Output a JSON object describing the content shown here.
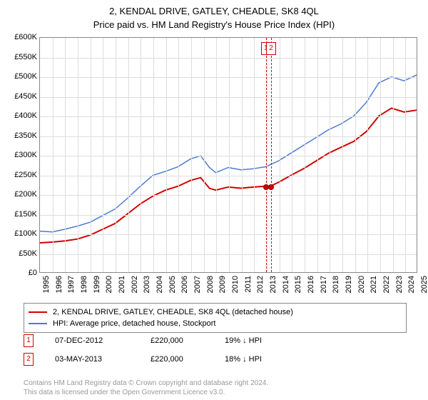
{
  "title": "2, KENDAL DRIVE, GATLEY, CHEADLE, SK8 4QL",
  "subtitle": "Price paid vs. HM Land Registry's House Price Index (HPI)",
  "chart": {
    "type": "line",
    "background_color": "#ffffff",
    "grid_color": "#dddddd",
    "border_color": "#888888",
    "x_start_year": 1995,
    "x_end_year": 2025,
    "x_ticks": [
      1995,
      1996,
      1997,
      1998,
      1999,
      2000,
      2001,
      2002,
      2003,
      2004,
      2005,
      2006,
      2007,
      2008,
      2009,
      2010,
      2011,
      2012,
      2013,
      2014,
      2015,
      2016,
      2017,
      2018,
      2019,
      2020,
      2021,
      2022,
      2023,
      2024,
      2025
    ],
    "y_min": 0,
    "y_max": 600,
    "y_ticks": [
      {
        "v": 0,
        "label": "£0"
      },
      {
        "v": 50,
        "label": "£50K"
      },
      {
        "v": 100,
        "label": "£100K"
      },
      {
        "v": 150,
        "label": "£150K"
      },
      {
        "v": 200,
        "label": "£200K"
      },
      {
        "v": 250,
        "label": "£250K"
      },
      {
        "v": 300,
        "label": "£300K"
      },
      {
        "v": 350,
        "label": "£350K"
      },
      {
        "v": 400,
        "label": "£400K"
      },
      {
        "v": 450,
        "label": "£450K"
      },
      {
        "v": 500,
        "label": "£500K"
      },
      {
        "v": 550,
        "label": "£550K"
      },
      {
        "v": 600,
        "label": "£600K"
      }
    ],
    "series": [
      {
        "name": "price_paid",
        "label": "2, KENDAL DRIVE, GATLEY, CHEADLE, SK8 4QL (detached house)",
        "color": "#d40000",
        "line_width": 2,
        "data": [
          {
            "x": 1995.0,
            "y": 75
          },
          {
            "x": 1996.0,
            "y": 77
          },
          {
            "x": 1997.0,
            "y": 80
          },
          {
            "x": 1998.0,
            "y": 85
          },
          {
            "x": 1999.0,
            "y": 95
          },
          {
            "x": 2000.0,
            "y": 110
          },
          {
            "x": 2001.0,
            "y": 125
          },
          {
            "x": 2002.0,
            "y": 150
          },
          {
            "x": 2003.0,
            "y": 175
          },
          {
            "x": 2004.0,
            "y": 195
          },
          {
            "x": 2005.0,
            "y": 210
          },
          {
            "x": 2006.0,
            "y": 220
          },
          {
            "x": 2007.0,
            "y": 235
          },
          {
            "x": 2007.8,
            "y": 242
          },
          {
            "x": 2008.5,
            "y": 215
          },
          {
            "x": 2009.0,
            "y": 210
          },
          {
            "x": 2010.0,
            "y": 218
          },
          {
            "x": 2011.0,
            "y": 215
          },
          {
            "x": 2012.0,
            "y": 218
          },
          {
            "x": 2012.93,
            "y": 220
          },
          {
            "x": 2013.34,
            "y": 220
          },
          {
            "x": 2014.0,
            "y": 230
          },
          {
            "x": 2015.0,
            "y": 248
          },
          {
            "x": 2016.0,
            "y": 265
          },
          {
            "x": 2017.0,
            "y": 285
          },
          {
            "x": 2018.0,
            "y": 305
          },
          {
            "x": 2019.0,
            "y": 320
          },
          {
            "x": 2020.0,
            "y": 335
          },
          {
            "x": 2021.0,
            "y": 360
          },
          {
            "x": 2022.0,
            "y": 400
          },
          {
            "x": 2023.0,
            "y": 420
          },
          {
            "x": 2024.0,
            "y": 410
          },
          {
            "x": 2025.0,
            "y": 415
          }
        ]
      },
      {
        "name": "hpi",
        "label": "HPI: Average price, detached house, Stockport",
        "color": "#4a7bd0",
        "line_width": 1.5,
        "data": [
          {
            "x": 1995.0,
            "y": 105
          },
          {
            "x": 1996.0,
            "y": 103
          },
          {
            "x": 1997.0,
            "y": 110
          },
          {
            "x": 1998.0,
            "y": 118
          },
          {
            "x": 1999.0,
            "y": 128
          },
          {
            "x": 2000.0,
            "y": 145
          },
          {
            "x": 2001.0,
            "y": 162
          },
          {
            "x": 2002.0,
            "y": 190
          },
          {
            "x": 2003.0,
            "y": 220
          },
          {
            "x": 2004.0,
            "y": 248
          },
          {
            "x": 2005.0,
            "y": 258
          },
          {
            "x": 2006.0,
            "y": 270
          },
          {
            "x": 2007.0,
            "y": 290
          },
          {
            "x": 2007.8,
            "y": 298
          },
          {
            "x": 2008.5,
            "y": 268
          },
          {
            "x": 2009.0,
            "y": 255
          },
          {
            "x": 2010.0,
            "y": 268
          },
          {
            "x": 2011.0,
            "y": 262
          },
          {
            "x": 2012.0,
            "y": 265
          },
          {
            "x": 2013.0,
            "y": 270
          },
          {
            "x": 2014.0,
            "y": 285
          },
          {
            "x": 2015.0,
            "y": 305
          },
          {
            "x": 2016.0,
            "y": 325
          },
          {
            "x": 2017.0,
            "y": 345
          },
          {
            "x": 2018.0,
            "y": 365
          },
          {
            "x": 2019.0,
            "y": 380
          },
          {
            "x": 2020.0,
            "y": 400
          },
          {
            "x": 2021.0,
            "y": 435
          },
          {
            "x": 2022.0,
            "y": 485
          },
          {
            "x": 2023.0,
            "y": 500
          },
          {
            "x": 2024.0,
            "y": 490
          },
          {
            "x": 2025.0,
            "y": 505
          }
        ]
      }
    ],
    "sale_markers": [
      {
        "idx": "1",
        "x": 2012.93,
        "y": 220,
        "color": "#d40000"
      },
      {
        "idx": "2",
        "x": 2013.34,
        "y": 220,
        "color": "#d40000"
      }
    ]
  },
  "legend": {
    "items": [
      {
        "color": "#d40000",
        "line_width": 2,
        "label": "2, KENDAL DRIVE, GATLEY, CHEADLE, SK8 4QL (detached house)"
      },
      {
        "color": "#4a7bd0",
        "line_width": 1.5,
        "label": "HPI: Average price, detached house, Stockport"
      }
    ]
  },
  "sales": [
    {
      "idx": "1",
      "color": "#d40000",
      "date": "07-DEC-2012",
      "price": "£220,000",
      "hpi": "19% ↓ HPI"
    },
    {
      "idx": "2",
      "color": "#d40000",
      "date": "03-MAY-2013",
      "price": "£220,000",
      "hpi": "18% ↓ HPI"
    }
  ],
  "footer": {
    "line1": "Contains HM Land Registry data © Crown copyright and database right 2024.",
    "line2": "This data is licensed under the Open Government Licence v3.0."
  }
}
